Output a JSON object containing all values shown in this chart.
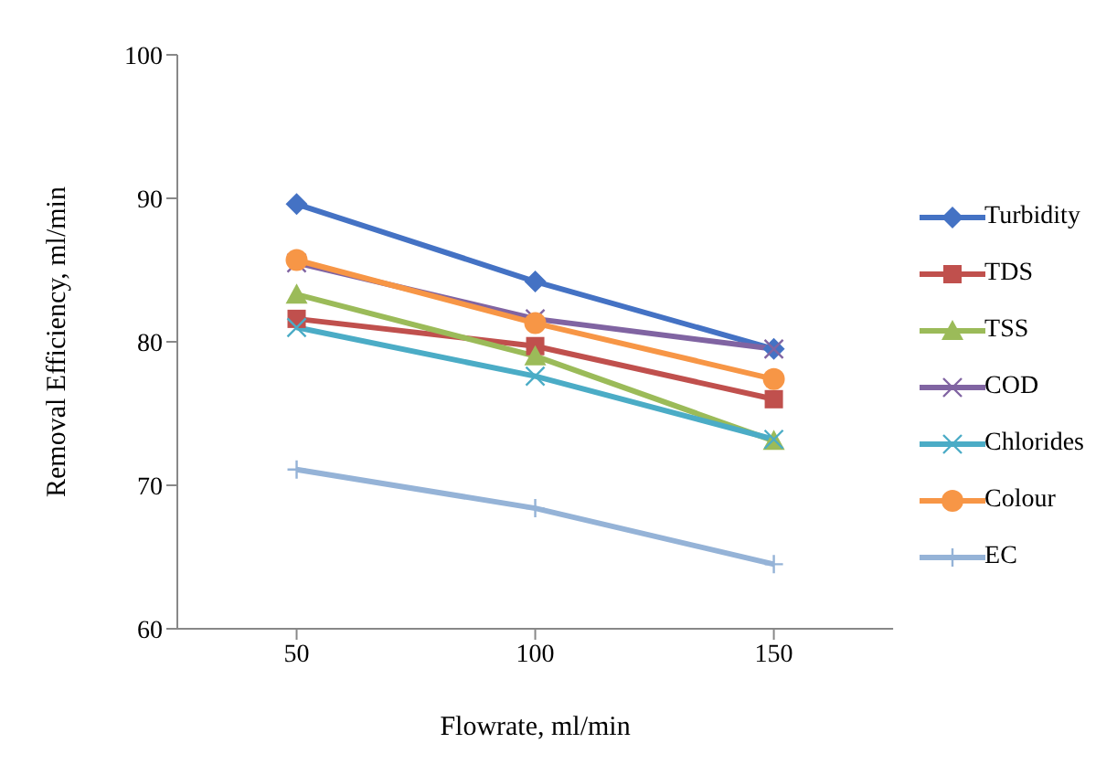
{
  "chart_data": {
    "type": "line",
    "xlabel": "Flowrate, ml/min",
    "ylabel": "Removal Efficiency, ml/min",
    "categories": [
      "50",
      "100",
      "150"
    ],
    "ylim": [
      60,
      100
    ],
    "yticks": [
      60,
      70,
      80,
      90,
      100
    ],
    "grid": false,
    "legend": "right",
    "series": [
      {
        "name": "Turbidity",
        "color": "#4472c4",
        "marker": "diamond",
        "values": [
          89.6,
          84.2,
          79.5
        ]
      },
      {
        "name": "TDS",
        "color": "#c0504d",
        "marker": "square",
        "values": [
          81.6,
          79.7,
          76.0
        ]
      },
      {
        "name": "TSS",
        "color": "#9bbb59",
        "marker": "triangle",
        "values": [
          83.3,
          79.0,
          73.1
        ]
      },
      {
        "name": "COD",
        "color": "#8064a2",
        "marker": "cross",
        "values": [
          85.5,
          81.6,
          79.5
        ]
      },
      {
        "name": "Chlorides",
        "color": "#4bacc6",
        "marker": "cross",
        "values": [
          81.0,
          77.6,
          73.2
        ]
      },
      {
        "name": "Colour",
        "color": "#f79646",
        "marker": "circle",
        "values": [
          85.7,
          81.3,
          77.4
        ]
      },
      {
        "name": "EC",
        "color": "#95b3d7",
        "marker": "plus",
        "values": [
          71.1,
          68.4,
          64.5
        ]
      }
    ]
  }
}
